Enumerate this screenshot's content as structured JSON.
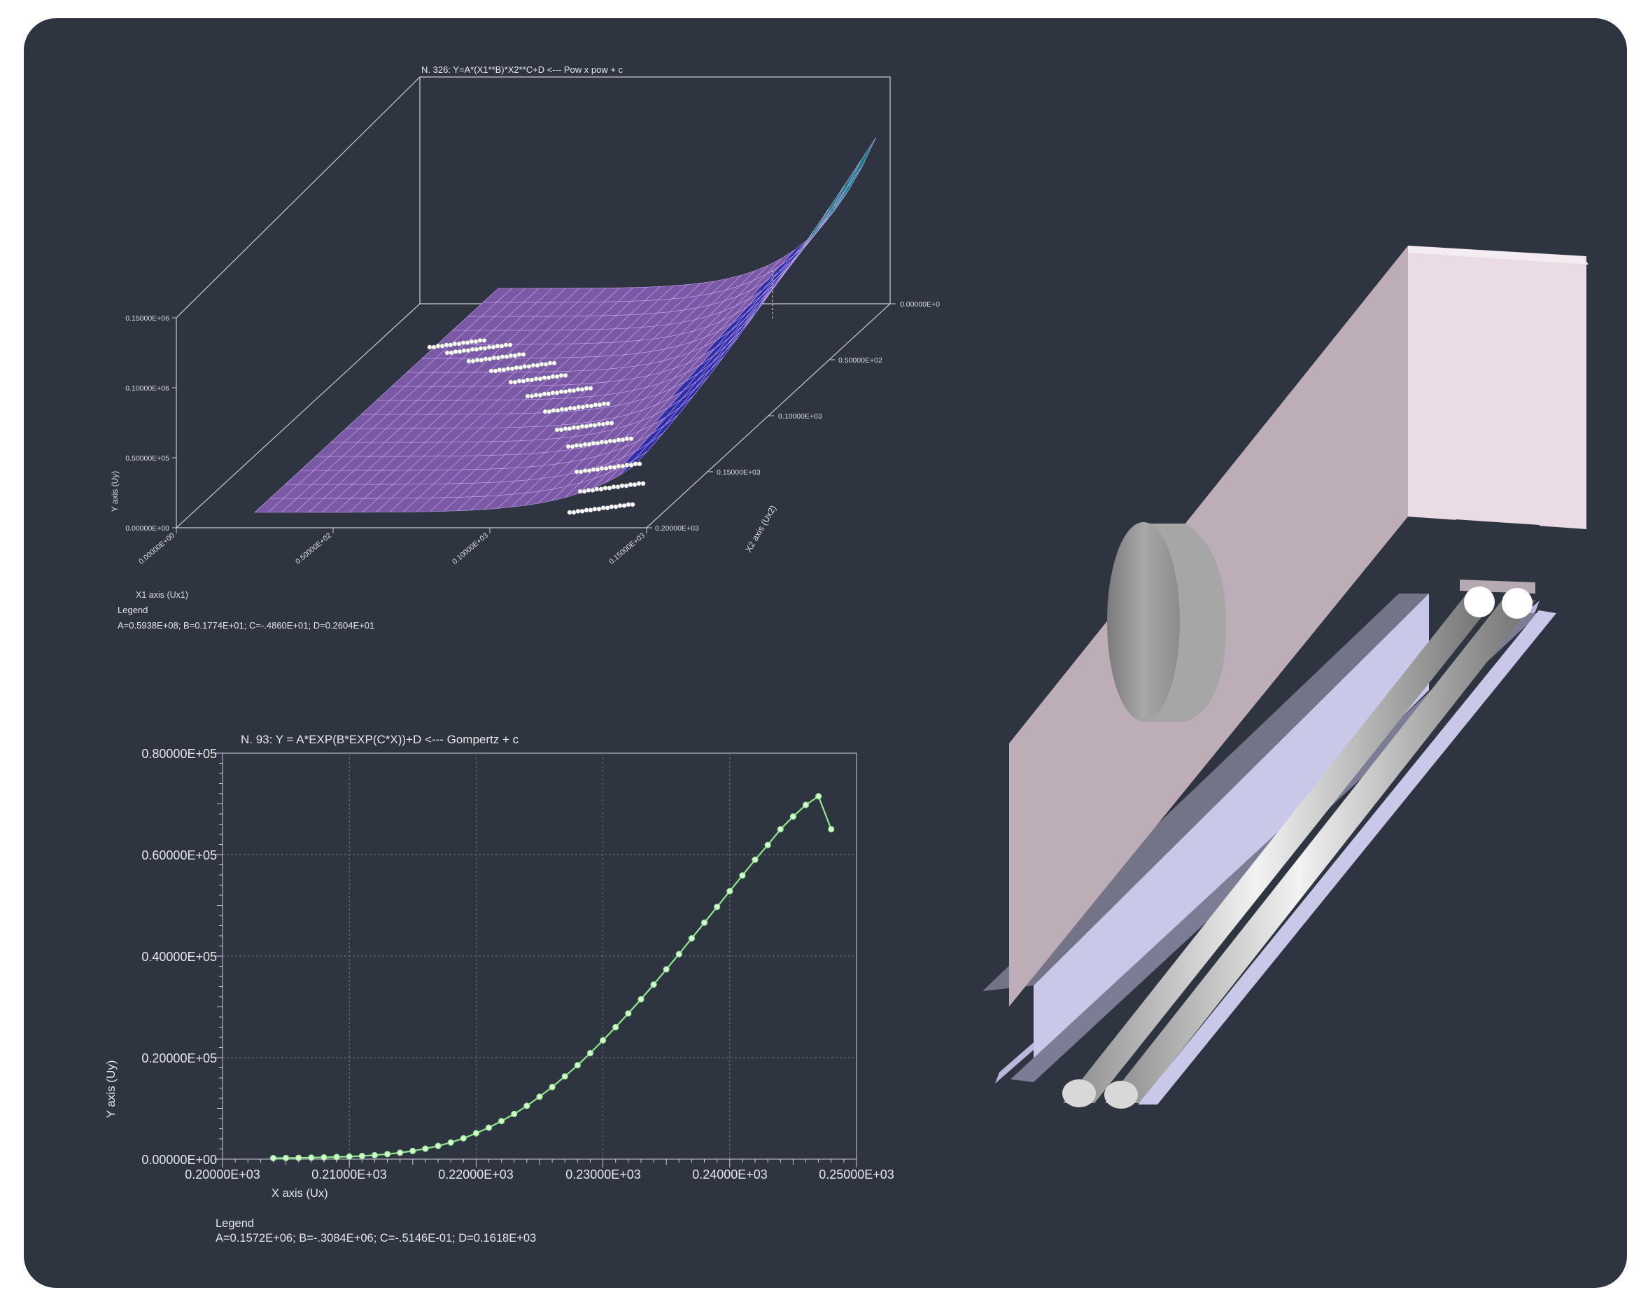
{
  "colors": {
    "panel_bg": "#2e3440",
    "axis": "#c8ccd4",
    "text": "#e4e7ec",
    "grid": "#6a707c",
    "curve": "#8fe88c",
    "point": "#d6f7d2",
    "surface_low": "#7a5aa6",
    "surface_mid": "#2f2fa8",
    "surface_high": "#1d7f86",
    "pink": "#e9dae2",
    "lavender": "#c9c8e8"
  },
  "chart_data": [
    {
      "type": "surface3d",
      "title": "N. 326:   Y=A*(X1**B)*X2**C+D <--- Pow x pow + c",
      "xlabel": "X1 axis (Ux1)",
      "ylabel": "Y axis (Uy)",
      "zlabel": "X2 axis (Ux2)",
      "x_ticks": [
        "0.00000E+00",
        "0.50000E+02",
        "0.10000E+03",
        "0.15000E+03"
      ],
      "y_ticks": [
        "0.00000E+00",
        "0.50000E+05",
        "0.10000E+06",
        "0.15000E+06"
      ],
      "z_ticks": [
        "0.00000E+0",
        "0.50000E+02",
        "0.10000E+03",
        "0.15000E+03",
        "0.20000E+03"
      ],
      "xlim": [
        0,
        150
      ],
      "ylim": [
        0,
        150000
      ],
      "zlim": [
        0,
        200
      ],
      "legend_title": "Legend",
      "legend_text": "A=0.5938E+08;  B=0.1774E+01;  C=-.4860E+01;  D=0.2604E+01",
      "points_rows": [
        7,
        8,
        7,
        8,
        7,
        8,
        8,
        7,
        8,
        8,
        8,
        8
      ]
    },
    {
      "type": "line",
      "title": "N.  93:   Y = A*EXP(B*EXP(C*X))+D <--- Gompertz + c",
      "xlabel": "X axis (Ux)",
      "ylabel": "Y axis (Uy)",
      "xlim": [
        200,
        250
      ],
      "ylim": [
        0,
        80000
      ],
      "x_ticks": [
        "0.20000E+03",
        "0.21000E+03",
        "0.22000E+03",
        "0.23000E+03",
        "0.24000E+03",
        "0.25000E+03"
      ],
      "y_ticks": [
        "0.00000E+00",
        "0.20000E+05",
        "0.40000E+05",
        "0.60000E+05",
        "0.80000E+05"
      ],
      "grid": true,
      "legend_title": "Legend",
      "legend_text": "A=0.1572E+06;  B=-.3084E+06;  C=-.5146E-01;  D=0.1618E+03",
      "x": [
        204,
        205,
        206,
        207,
        208,
        209,
        210,
        211,
        212,
        213,
        214,
        215,
        216,
        217,
        218,
        219,
        220,
        221,
        222,
        223,
        224,
        225,
        226,
        227,
        228,
        229,
        230,
        231,
        232,
        233,
        234,
        235,
        236,
        237,
        238,
        239,
        240,
        241,
        242,
        243,
        244,
        245,
        246,
        247,
        248
      ],
      "y": [
        200,
        220,
        250,
        290,
        340,
        410,
        500,
        620,
        780,
        990,
        1260,
        1610,
        2050,
        2600,
        3280,
        4100,
        5100,
        6200,
        7500,
        8900,
        10500,
        12300,
        14200,
        16300,
        18500,
        20900,
        23400,
        26000,
        28700,
        31500,
        34400,
        37400,
        40400,
        43500,
        46600,
        49700,
        52800,
        55900,
        59000,
        61900,
        65000,
        67500,
        69800,
        71500,
        65000
      ]
    }
  ]
}
